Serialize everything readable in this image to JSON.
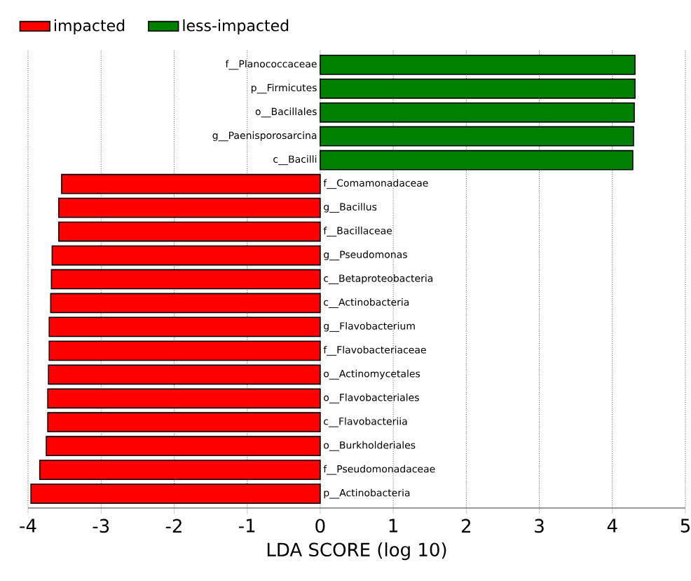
{
  "chart_data": {
    "type": "bar",
    "orientation": "horizontal",
    "xlabel": "LDA SCORE (log 10)",
    "categories": [
      "f__Planococcaceae",
      "p__Firmicutes",
      "o__Bacillales",
      "g__Paenisporosarcina",
      "c__Bacilli",
      "f__Comamonadaceae",
      "g__Bacillus",
      "f__Bacillaceae",
      "g__Pseudomonas",
      "c__Betaproteobacteria",
      "c__Actinobacteria",
      "g__Flavobacterium",
      "f__Flavobacteriaceae",
      "o__Actinomycetales",
      "o__Flavobacteriales",
      "c__Flavobacteriia",
      "o__Burkholderiales",
      "f__Pseudomonadaceae",
      "p__Actinobacteria"
    ],
    "series": [
      {
        "name": "impacted",
        "color": "#ff0000",
        "values": [
          null,
          null,
          null,
          null,
          null,
          -3.54,
          -3.58,
          -3.58,
          -3.67,
          -3.68,
          -3.69,
          -3.71,
          -3.71,
          -3.72,
          -3.73,
          -3.73,
          -3.75,
          -3.84,
          -3.96
        ]
      },
      {
        "name": "less-impacted",
        "color": "#008000",
        "values": [
          4.31,
          4.31,
          4.3,
          4.29,
          4.28,
          null,
          null,
          null,
          null,
          null,
          null,
          null,
          null,
          null,
          null,
          null,
          null,
          null,
          null
        ]
      }
    ],
    "xlim": [
      -4,
      5
    ],
    "xticks": [
      -4,
      -3,
      -2,
      -1,
      0,
      1,
      2,
      3,
      4,
      5
    ],
    "grid": "x",
    "legend": "top left"
  }
}
